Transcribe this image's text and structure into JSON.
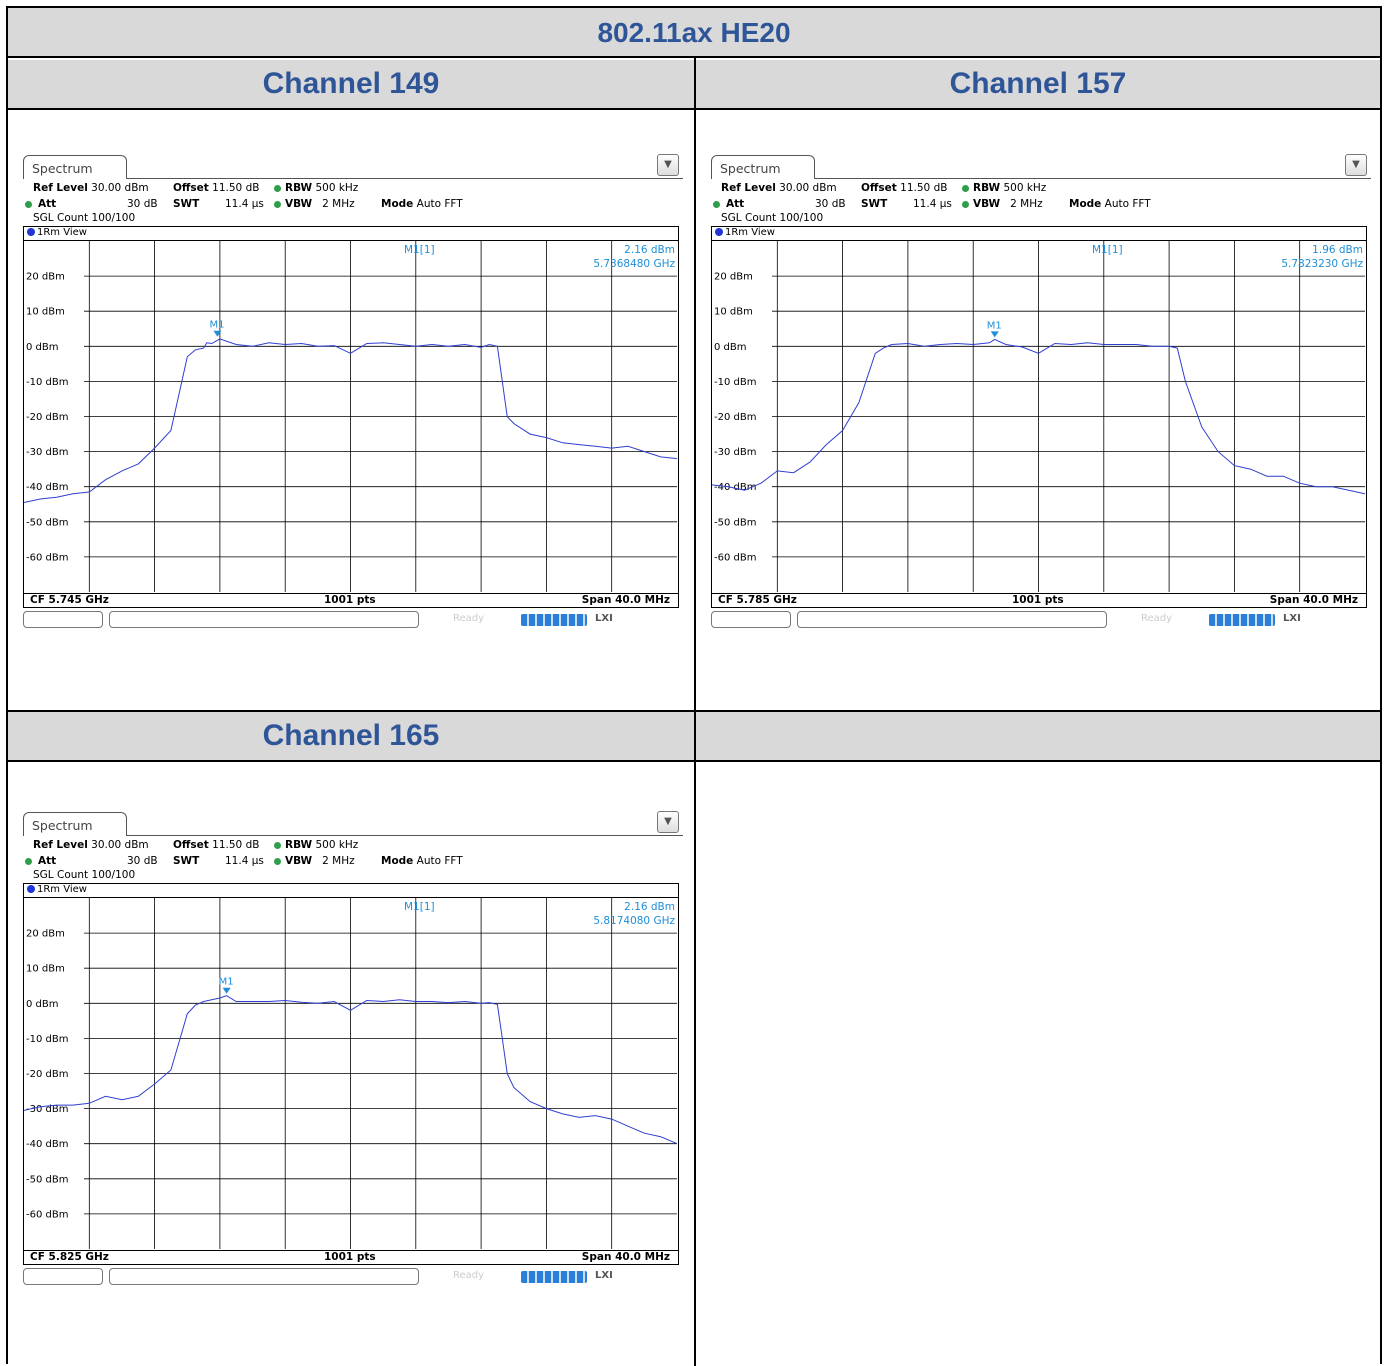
{
  "title": "802.11ax HE20",
  "panels": [
    {
      "header": "Channel 149",
      "tab": "Spectrum",
      "ref_level_label": "Ref Level",
      "ref_level": "30.00 dBm",
      "offset_label": "Offset",
      "offset": "11.50 dB",
      "rbw_label": "RBW",
      "rbw": "500 kHz",
      "att_label": "Att",
      "att": "30 dB",
      "swt_label": "SWT",
      "swt": "11.4 µs",
      "vbw_label": "VBW",
      "vbw": "2 MHz",
      "mode_label": "Mode",
      "mode": "Auto FFT",
      "sgl": "SGL Count 100/100",
      "view": "1Rm View",
      "marker_name": "M1[1]",
      "marker_level": "2.16 dBm",
      "marker_freq": "5.7368480 GHz",
      "marker_tag": "M1",
      "cf": "CF 5.745 GHz",
      "pts": "1001 pts",
      "span": "Span 40.0 MHz",
      "ready": "Ready",
      "chart_data": {
        "type": "line",
        "center_mhz": 5745,
        "span_mhz": 40,
        "ylim": [
          -70,
          30
        ],
        "y_ticks": [
          "20 dBm",
          "10 dBm",
          "0 dBm",
          "-10 dBm",
          "-20 dBm",
          "-30 dBm",
          "-40 dBm",
          "-50 dBm",
          "-60 dBm"
        ],
        "marker": {
          "x_offset_mhz": -8.15,
          "y": 2.16
        },
        "x_offset_mhz": [
          -20,
          -19,
          -18,
          -17,
          -16,
          -15,
          -14,
          -13,
          -12,
          -11,
          -10,
          -9.5,
          -9,
          -8.8,
          -8.5,
          -8,
          -7,
          -6,
          -5,
          -4,
          -3,
          -2,
          -1,
          0,
          1,
          2,
          3,
          4,
          5,
          6,
          7,
          8,
          8.5,
          9,
          9.3,
          9.6,
          10,
          11,
          12,
          13,
          14,
          15,
          16,
          17,
          18,
          19,
          20
        ],
        "y_dbm": [
          -44.5,
          -43.5,
          -43,
          -42,
          -41.5,
          -38,
          -35.5,
          -33.5,
          -29,
          -24,
          -3,
          -1,
          -0.5,
          1,
          0.8,
          2.1,
          0.5,
          0,
          1,
          0.5,
          0.8,
          0,
          0.2,
          -2,
          0.8,
          1,
          0.5,
          0,
          0.5,
          0,
          0.5,
          -0.3,
          0.5,
          0,
          -10,
          -20,
          -22,
          -25,
          -26,
          -27.5,
          -28,
          -28.5,
          -29,
          -28.5,
          -30,
          -31.5,
          -32
        ]
      }
    },
    {
      "header": "Channel 157",
      "tab": "Spectrum",
      "ref_level_label": "Ref Level",
      "ref_level": "30.00 dBm",
      "offset_label": "Offset",
      "offset": "11.50 dB",
      "rbw_label": "RBW",
      "rbw": "500 kHz",
      "att_label": "Att",
      "att": "30 dB",
      "swt_label": "SWT",
      "swt": "11.4 µs",
      "vbw_label": "VBW",
      "vbw": "2 MHz",
      "mode_label": "Mode",
      "mode": "Auto FFT",
      "sgl": "SGL Count 100/100",
      "view": "1Rm View",
      "marker_name": "M1[1]",
      "marker_level": "1.96 dBm",
      "marker_freq": "5.7823230 GHz",
      "marker_tag": "M1",
      "cf": "CF 5.785 GHz",
      "pts": "1001 pts",
      "span": "Span 40.0 MHz",
      "ready": "Ready",
      "chart_data": {
        "type": "line",
        "center_mhz": 5785,
        "span_mhz": 40,
        "ylim": [
          -70,
          30
        ],
        "y_ticks": [
          "20 dBm",
          "10 dBm",
          "0 dBm",
          "-10 dBm",
          "-20 dBm",
          "-30 dBm",
          "-40 dBm",
          "-50 dBm",
          "-60 dBm"
        ],
        "marker": {
          "x_offset_mhz": -2.68,
          "y": 1.96
        },
        "x_offset_mhz": [
          -20,
          -19,
          -18,
          -17,
          -16,
          -15,
          -14,
          -13,
          -12,
          -11,
          -10,
          -9.5,
          -9,
          -8,
          -7,
          -6,
          -5,
          -4,
          -3,
          -2.68,
          -2,
          -1,
          0,
          1,
          2,
          3,
          4,
          5,
          6,
          7,
          8,
          8.5,
          9,
          10,
          11,
          12,
          13,
          14,
          15,
          16,
          17,
          18,
          19,
          20
        ],
        "y_dbm": [
          -39.5,
          -40,
          -41,
          -39,
          -35.5,
          -36,
          -33,
          -28,
          -24,
          -16,
          -2,
          -0.5,
          0.5,
          0.8,
          0,
          0.5,
          0.8,
          0.5,
          1,
          1.96,
          0.5,
          -0.2,
          -2,
          0.8,
          0.5,
          1,
          0.5,
          0.5,
          0.5,
          0,
          0,
          -0.5,
          -10,
          -23,
          -30,
          -34,
          -35,
          -37,
          -37,
          -39,
          -40,
          -40,
          -41,
          -42
        ]
      }
    },
    {
      "header": "Channel 165",
      "tab": "Spectrum",
      "ref_level_label": "Ref Level",
      "ref_level": "30.00 dBm",
      "offset_label": "Offset",
      "offset": "11.50 dB",
      "rbw_label": "RBW",
      "rbw": "500 kHz",
      "att_label": "Att",
      "att": "30 dB",
      "swt_label": "SWT",
      "swt": "11.4 µs",
      "vbw_label": "VBW",
      "vbw": "2 MHz",
      "mode_label": "Mode",
      "mode": "Auto FFT",
      "sgl": "SGL Count 100/100",
      "view": "1Rm View",
      "marker_name": "M1[1]",
      "marker_level": "2.16 dBm",
      "marker_freq": "5.8174080 GHz",
      "marker_tag": "M1",
      "cf": "CF 5.825 GHz",
      "pts": "1001 pts",
      "span": "Span 40.0 MHz",
      "ready": "Ready",
      "chart_data": {
        "type": "line",
        "center_mhz": 5825,
        "span_mhz": 40,
        "ylim": [
          -70,
          30
        ],
        "y_ticks": [
          "20 dBm",
          "10 dBm",
          "0 dBm",
          "-10 dBm",
          "-20 dBm",
          "-30 dBm",
          "-40 dBm",
          "-50 dBm",
          "-60 dBm"
        ],
        "marker": {
          "x_offset_mhz": -7.59,
          "y": 2.16
        },
        "x_offset_mhz": [
          -20,
          -19,
          -18,
          -17,
          -16,
          -15,
          -14,
          -13,
          -12,
          -11,
          -10,
          -9.5,
          -9,
          -8.5,
          -8,
          -7.59,
          -7,
          -6,
          -5,
          -4,
          -3,
          -2,
          -1,
          0,
          1,
          2,
          3,
          4,
          5,
          6,
          7,
          8,
          8.5,
          9,
          9.3,
          9.6,
          10,
          11,
          12,
          13,
          14,
          15,
          16,
          17,
          18,
          19,
          20
        ],
        "y_dbm": [
          -30.5,
          -29.5,
          -29,
          -29,
          -28.5,
          -26.5,
          -27.5,
          -26.5,
          -23,
          -19,
          -3,
          -0.5,
          0.5,
          1,
          1.5,
          2.16,
          0.5,
          0.5,
          0.5,
          0.8,
          0.3,
          0,
          0.5,
          -2,
          0.8,
          0.5,
          1,
          0.5,
          0.5,
          0.2,
          0.5,
          0,
          0.2,
          -0.3,
          -10,
          -20,
          -24,
          -28,
          -30,
          -31.5,
          -32.5,
          -32,
          -33,
          -35,
          -37,
          -38,
          -40
        ]
      }
    }
  ]
}
